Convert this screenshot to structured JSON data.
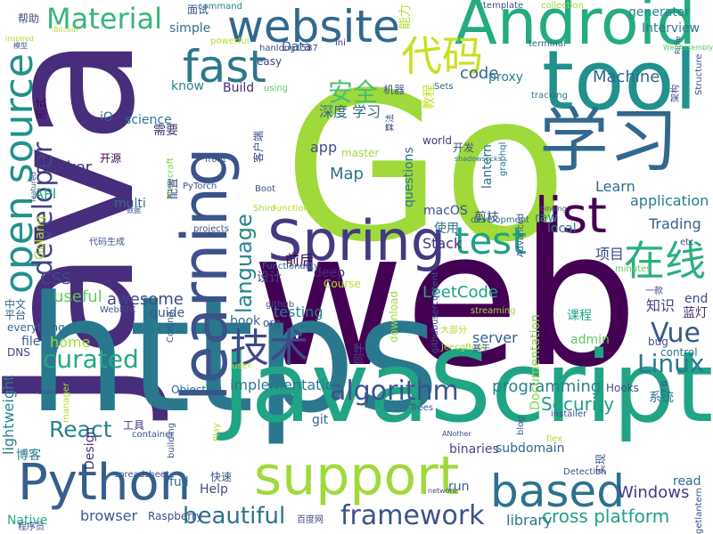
{
  "words": [
    {
      "text": "Go",
      "color": "#9fda3a"
    },
    {
      "text": "web",
      "color": "#440154"
    },
    {
      "text": "Java",
      "color": "#472d7b"
    },
    {
      "text": "https",
      "color": "#2a788e"
    },
    {
      "text": "JavaScript",
      "color": "#20a486"
    },
    {
      "text": "tool",
      "color": "#21918c"
    },
    {
      "text": "Android",
      "color": "#25ab82"
    },
    {
      "text": "学习",
      "color": "#31688e"
    },
    {
      "text": "learning",
      "color": "#3b528b"
    },
    {
      "text": "Spring",
      "color": "#443983"
    },
    {
      "text": "support",
      "color": "#9fda3a"
    },
    {
      "text": "Python",
      "color": "#355f8d"
    },
    {
      "text": "based",
      "color": "#2c728e"
    },
    {
      "text": "list",
      "color": "#440154"
    },
    {
      "text": "website",
      "color": "#31688e"
    },
    {
      "text": "fast",
      "color": "#2a788e"
    },
    {
      "text": "open source",
      "color": "#21918c"
    },
    {
      "text": "test",
      "color": "#1fa187"
    },
    {
      "text": "代码",
      "color": "#c8e020"
    },
    {
      "text": "在线",
      "color": "#2ab07f"
    },
    {
      "text": "技术",
      "color": "#3e4a89"
    },
    {
      "text": "algorithm",
      "color": "#3b528b"
    },
    {
      "text": "framework",
      "color": "#3b528b"
    },
    {
      "text": "beautiful",
      "color": "#2c728e"
    },
    {
      "text": "curated",
      "color": "#22a884"
    },
    {
      "text": "Material",
      "color": "#35b779"
    },
    {
      "text": "developer",
      "color": "#414487"
    },
    {
      "text": "language",
      "color": "#24868e"
    },
    {
      "text": "安全",
      "color": "#44bf70"
    },
    {
      "text": "Linux",
      "color": "#2a788e"
    },
    {
      "text": "Vue",
      "color": "#38588c"
    },
    {
      "text": "React",
      "color": "#25838e"
    },
    {
      "text": "LeetCode",
      "color": "#1fa187"
    },
    {
      "text": "Security",
      "color": "#1fa187"
    },
    {
      "text": "programming",
      "color": "#26828e"
    },
    {
      "text": "Machine",
      "color": "#31688e"
    },
    {
      "text": "Docker",
      "color": "#46327e"
    },
    {
      "text": "Map",
      "color": "#2c728e"
    },
    {
      "text": "useful",
      "color": "#5ec962"
    },
    {
      "text": "awesome",
      "color": "#3e4a89"
    },
    {
      "text": "CSS",
      "color": "#3e4a89"
    },
    {
      "text": "code",
      "color": "#31688e"
    },
    {
      "text": "app",
      "color": "#3e4a89"
    },
    {
      "text": "深度 学习",
      "color": "#31688e"
    },
    {
      "text": "项目",
      "color": "#3e4a89"
    },
    {
      "text": "知识",
      "color": "#414487"
    },
    {
      "text": "cross platform",
      "color": "#1fa187"
    },
    {
      "text": "Windows",
      "color": "#443983"
    },
    {
      "text": "application",
      "color": "#2a788e"
    },
    {
      "text": "Trading",
      "color": "#355f8d"
    },
    {
      "text": "Learn",
      "color": "#31688e"
    },
    {
      "text": "Stack",
      "color": "#46327e"
    },
    {
      "text": "testing",
      "color": "#26828e"
    },
    {
      "text": "browser",
      "color": "#38588c"
    },
    {
      "text": "server",
      "color": "#355f8d"
    },
    {
      "text": "home",
      "color": "#9fda3a"
    },
    {
      "text": "implementation",
      "color": "#2a788e"
    },
    {
      "text": "library",
      "color": "#2c728e"
    },
    {
      "text": "generator",
      "color": "#24868e"
    },
    {
      "text": "Interview",
      "color": "#2a788e"
    },
    {
      "text": "proxy",
      "color": "#25838e"
    },
    {
      "text": "lantern",
      "color": "#2c728e"
    },
    {
      "text": "questions",
      "color": "#2c728e"
    },
    {
      "text": "deep",
      "color": "#472d7b"
    },
    {
      "text": "前后",
      "color": "#440154"
    },
    {
      "text": "设计",
      "color": "#3e4a89"
    },
    {
      "text": "book",
      "color": "#31688e"
    },
    {
      "text": "subdomain",
      "color": "#31688e"
    },
    {
      "text": "run",
      "color": "#355f8d"
    },
    {
      "text": "binaries",
      "color": "#414487"
    },
    {
      "text": "science",
      "color": "#2a788e"
    },
    {
      "text": "API",
      "color": "#25ab82"
    },
    {
      "text": "multi",
      "color": "#2c728e"
    },
    {
      "text": "Golang",
      "color": "#b5de2b"
    },
    {
      "text": "file",
      "color": "#31688e"
    },
    {
      "text": "guide",
      "color": "#38588c"
    },
    {
      "text": "Build",
      "color": "#472d7b"
    },
    {
      "text": "know",
      "color": "#26828e"
    },
    {
      "text": "simple",
      "color": "#2c728e"
    },
    {
      "text": "Data",
      "color": "#38588c"
    },
    {
      "text": "iO",
      "color": "#31688e"
    },
    {
      "text": "end",
      "color": "#3e4a89"
    },
    {
      "text": "蓝灯",
      "color": "#472d7b"
    },
    {
      "text": "admin",
      "color": "#5ec962"
    },
    {
      "text": "课程",
      "color": "#20a486"
    },
    {
      "text": "Documentation",
      "color": "#84d44b"
    },
    {
      "text": "lightweight",
      "color": "#26828e"
    },
    {
      "text": "博客",
      "color": "#2a788e"
    },
    {
      "text": "Design",
      "color": "#46327e"
    },
    {
      "text": "full",
      "color": "#2c728e"
    },
    {
      "text": "Help",
      "color": "#3e4a89"
    },
    {
      "text": "read",
      "color": "#31688e"
    },
    {
      "text": "Native",
      "color": "#25ab82"
    },
    {
      "text": "macOS",
      "color": "#3b528b"
    },
    {
      "text": "使用",
      "color": "#2c728e"
    },
    {
      "text": "系统",
      "color": "#2c728e"
    },
    {
      "text": "剪枝",
      "color": "#3b528b"
    },
    {
      "text": "local",
      "color": "#2c728e"
    },
    {
      "text": "raw",
      "color": "#24868e"
    },
    {
      "text": "git",
      "color": "#31688e"
    },
    {
      "text": "Hooks",
      "color": "#3e4a89"
    },
    {
      "text": "Object",
      "color": "#31688e"
    },
    {
      "text": "工具",
      "color": "#46327e"
    },
    {
      "text": "需要",
      "color": "#46327e"
    },
    {
      "text": "开源",
      "color": "#440154"
    },
    {
      "text": "面试",
      "color": "#3b528b"
    },
    {
      "text": "帮助",
      "color": "#3e4a89"
    },
    {
      "text": "能力",
      "color": "#b5de2b"
    },
    {
      "text": "教程",
      "color": "#c8e020"
    },
    {
      "text": "开发",
      "color": "#3b528b"
    },
    {
      "text": "机器",
      "color": "#3b528b"
    },
    {
      "text": "easy",
      "color": "#414487"
    },
    {
      "text": "world",
      "color": "#46327e"
    },
    {
      "text": "bug",
      "color": "#3b528b"
    },
    {
      "text": "control",
      "color": "#2a788e"
    },
    {
      "text": "平台",
      "color": "#3b528b"
    },
    {
      "text": "everything",
      "color": "#31688e"
    },
    {
      "text": "DNS",
      "color": "#414487"
    },
    {
      "text": "中文",
      "color": "#31688e"
    },
    {
      "text": "形式",
      "color": "#440154"
    },
    {
      "text": "master",
      "color": "#9fda3a"
    },
    {
      "text": "command",
      "color": "#25838e"
    },
    {
      "text": "using",
      "color": "#5ec962"
    },
    {
      "text": "hanlong1587",
      "color": "#3e4a89"
    },
    {
      "text": "ini",
      "color": "#46327e"
    },
    {
      "text": "Sets",
      "color": "#31688e"
    },
    {
      "text": "collection",
      "color": "#9fda3a"
    },
    {
      "text": "template",
      "color": "#3b528b"
    },
    {
      "text": "terminal",
      "color": "#31688e"
    },
    {
      "text": "Rime",
      "color": "#3b528b"
    },
    {
      "text": "WebAssembly",
      "color": "#5ec962"
    },
    {
      "text": "Structure",
      "color": "#3b528b"
    },
    {
      "text": "架构",
      "color": "#3e4a89"
    },
    {
      "text": "graphql",
      "color": "#2c728e"
    },
    {
      "text": "shadowsocks",
      "color": "#2c728e"
    },
    {
      "text": "tracking",
      "color": "#2c728e"
    },
    {
      "text": "算法",
      "color": "#3b528b"
    },
    {
      "text": "front",
      "color": "#3b528b"
    },
    {
      "text": "Minecraft",
      "color": "#84d44b"
    },
    {
      "text": "PyTorch",
      "color": "#3b528b"
    },
    {
      "text": "Shiro",
      "color": "#9fda3a"
    },
    {
      "text": "function",
      "color": "#b5de2b"
    },
    {
      "text": "Boot",
      "color": "#3b528b"
    },
    {
      "text": "write",
      "color": "#46327e"
    },
    {
      "text": "数据",
      "color": "#3b528b"
    },
    {
      "text": "projects",
      "color": "#3e4a89"
    },
    {
      "text": "配置",
      "color": "#3b528b"
    },
    {
      "text": "代码生成",
      "color": "#3b528b"
    },
    {
      "text": "Functionality",
      "color": "#31688e"
    },
    {
      "text": "etc",
      "color": "#3b528b"
    },
    {
      "text": "minutes",
      "color": "#5ec962"
    },
    {
      "text": "software",
      "color": "#b5de2b"
    },
    {
      "text": "development",
      "color": "#31688e"
    },
    {
      "text": "Advanced",
      "color": "#3b528b"
    },
    {
      "text": "binding",
      "color": "#3b528b"
    },
    {
      "text": "githubusercontent",
      "color": "#3b528b"
    },
    {
      "text": "一款",
      "color": "#3e4a89"
    },
    {
      "text": "Course",
      "color": "#b5de2b"
    },
    {
      "text": "github",
      "color": "#3b528b"
    },
    {
      "text": "org",
      "color": "#3b528b"
    },
    {
      "text": "WebRTC",
      "color": "#3b528b"
    },
    {
      "text": "streaming",
      "color": "#9fda3a"
    },
    {
      "text": "download",
      "color": "#9fda3a"
    },
    {
      "text": "Coding",
      "color": "#3b528b"
    },
    {
      "text": "大部分",
      "color": "#b5de2b"
    },
    {
      "text": "JeecgBoot",
      "color": "#9fda3a"
    },
    {
      "text": "基于",
      "color": "#3b528b"
    },
    {
      "text": "同学",
      "color": "#3e4a89"
    },
    {
      "text": "building",
      "color": "#3b528b"
    },
    {
      "text": "Play",
      "color": "#b5de2b"
    },
    {
      "text": "Trees",
      "color": "#3b528b"
    },
    {
      "text": "client",
      "color": "#3b528b"
    },
    {
      "text": "manager",
      "color": "#b5de2b"
    },
    {
      "text": "container",
      "color": "#3b528b"
    },
    {
      "text": "spreadsheet",
      "color": "#3b528b"
    },
    {
      "text": "快速",
      "color": "#3b528b"
    },
    {
      "text": "Raspberry",
      "color": "#3b528b"
    },
    {
      "text": "百度网",
      "color": "#3e4a89"
    },
    {
      "text": "程序员",
      "color": "#3e4a89"
    },
    {
      "text": "network",
      "color": "#3b528b"
    },
    {
      "text": "Detection",
      "color": "#3b528b"
    },
    {
      "text": "实现",
      "color": "#3b528b"
    },
    {
      "text": "getlantern",
      "color": "#3b528b"
    },
    {
      "text": "下载",
      "color": "#3b528b"
    },
    {
      "text": "blog",
      "color": "#3b528b"
    },
    {
      "text": "installer",
      "color": "#3b528b"
    },
    {
      "text": "flex",
      "color": "#b5de2b"
    },
    {
      "text": "ANother",
      "color": "#3b528b"
    },
    {
      "text": "inspired",
      "color": "#b5de2b"
    },
    {
      "text": "模型",
      "color": "#3b528b"
    },
    {
      "text": "Bitcoin",
      "color": "#b5de2b"
    },
    {
      "text": "featured",
      "color": "#3b528b"
    },
    {
      "text": "客户端",
      "color": "#3e4a89"
    },
    {
      "text": "user",
      "color": "#b5de2b"
    },
    {
      "text": "powerful",
      "color": "#b5de2b"
    },
    {
      "text": "笔记",
      "color": "#b5de2b"
    },
    {
      "text": "note",
      "color": "#b5de2b"
    }
  ]
}
